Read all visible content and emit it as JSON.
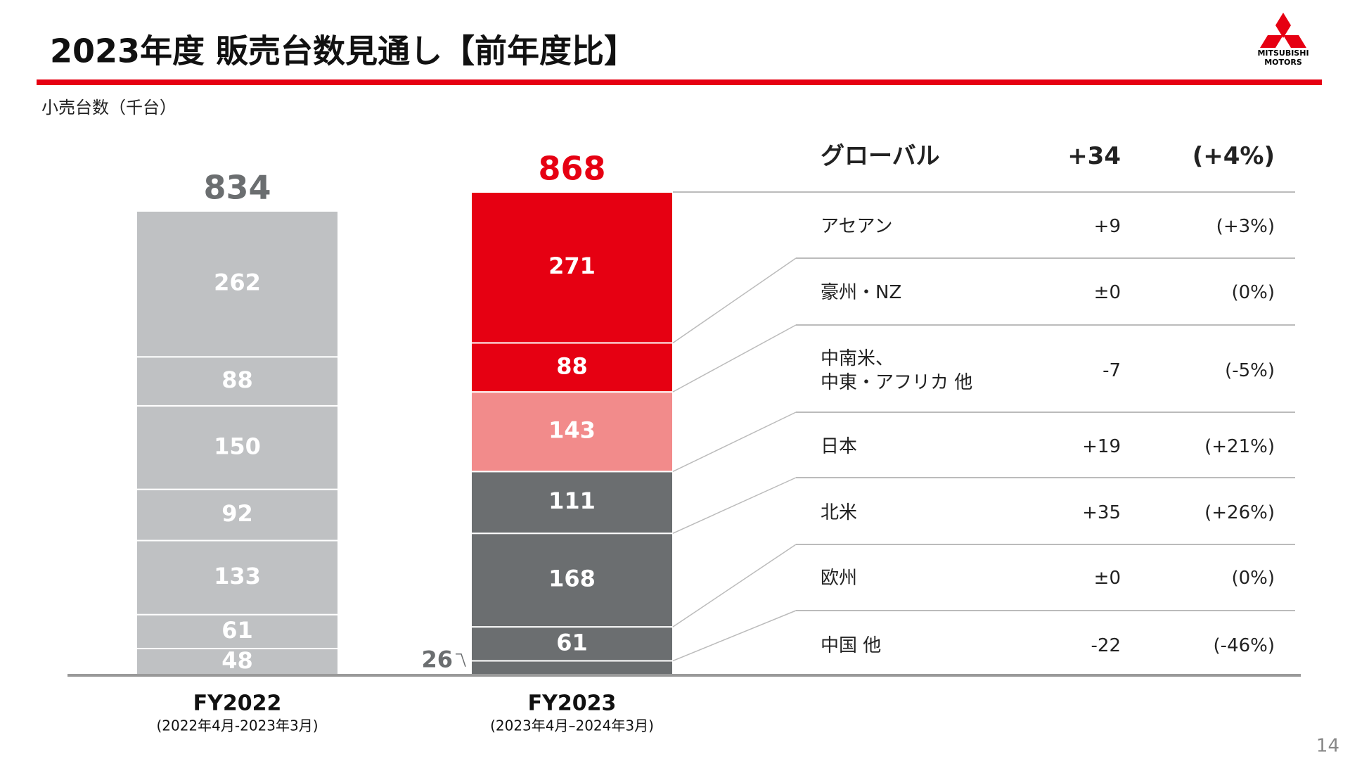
{
  "header": {
    "title": "2023年度 販売台数見通し【前年度比】",
    "logo_text": [
      "MITSUBISHI",
      "MOTORS"
    ],
    "unit_label": "小売台数（千台）",
    "page_number": "14"
  },
  "chart_data": {
    "type": "stacked_bar",
    "categories": [
      "FY2022",
      "FY2023"
    ],
    "category_sublabels": [
      "(2022年4月-2023年3月)",
      "(2023年4月–2024年3月)"
    ],
    "totals": [
      834,
      868
    ],
    "total_colors": [
      "#6b6e70",
      "#e60012"
    ],
    "series": [
      {
        "name": "中国 他",
        "colors": [
          "#bfc1c3",
          "#6b6e70"
        ],
        "values": [
          48,
          26
        ]
      },
      {
        "name": "欧州",
        "colors": [
          "#bfc1c3",
          "#6b6e70"
        ],
        "values": [
          61,
          61
        ]
      },
      {
        "name": "北米",
        "colors": [
          "#bfc1c3",
          "#6b6e70"
        ],
        "values": [
          133,
          168
        ]
      },
      {
        "name": "日本",
        "colors": [
          "#bfc1c3",
          "#6b6e70"
        ],
        "values": [
          92,
          111
        ]
      },
      {
        "name": "中南米、\n中東・アフリカ 他",
        "colors": [
          "#bfc1c3",
          "#f28b8b"
        ],
        "values": [
          150,
          143
        ]
      },
      {
        "name": "豪州・NZ",
        "colors": [
          "#bfc1c3",
          "#e60012"
        ],
        "values": [
          88,
          88
        ]
      },
      {
        "name": "アセアン",
        "colors": [
          "#bfc1c3",
          "#e60012"
        ],
        "values": [
          262,
          271
        ]
      }
    ]
  },
  "table": {
    "header": [
      "グローバル",
      "+34",
      "(+4%)"
    ],
    "rows": [
      [
        "+9",
        "(+3%)"
      ],
      [
        "±0",
        "(0%)"
      ],
      [
        "-7",
        "(-5%)"
      ],
      [
        "+19",
        "(+21%)"
      ],
      [
        "+35",
        "(+26%)"
      ],
      [
        "±0",
        "(0%)"
      ],
      [
        "-22",
        "(-46%)"
      ]
    ]
  }
}
